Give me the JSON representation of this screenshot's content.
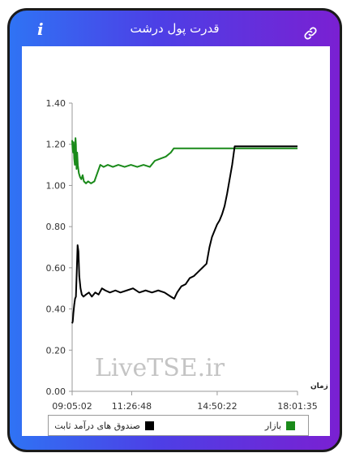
{
  "header": {
    "title": "قدرت پول درشت",
    "info_glyph": "i",
    "link_icon": "link-icon"
  },
  "colors": {
    "gradient_start": "#2f73f4",
    "gradient_end": "#7a20d2",
    "market": "#1a8a1a",
    "fixed_income": "#000000"
  },
  "watermark": "LiveTSE.ir",
  "chart_data": {
    "type": "line",
    "title": "",
    "xlabel": "زمان",
    "ylabel": "",
    "ylim": [
      0,
      1.4
    ],
    "y_ticks": [
      "0.00",
      "0.20",
      "0.40",
      "0.60",
      "0.80",
      "1.00",
      "1.20",
      "1.40"
    ],
    "x_ticks": [
      "09:05:02",
      "11:26:48",
      "14:50:22",
      "18:01:35"
    ],
    "xlim": [
      "09:05:02",
      "18:01:35"
    ],
    "grid": false,
    "legend_position": "bottom",
    "series": [
      {
        "name": "بازار",
        "color": "#1a8a1a",
        "points": [
          [
            "09:05:02",
            1.22
          ],
          [
            "09:06:00",
            1.18
          ],
          [
            "09:07:30",
            1.16
          ],
          [
            "09:08:30",
            1.21
          ],
          [
            "09:10:00",
            1.13
          ],
          [
            "09:11:30",
            1.1
          ],
          [
            "09:13:00",
            1.23
          ],
          [
            "09:14:00",
            1.2
          ],
          [
            "09:15:30",
            1.08
          ],
          [
            "09:17:00",
            1.16
          ],
          [
            "09:18:30",
            1.1
          ],
          [
            "09:21:00",
            1.06
          ],
          [
            "09:24:00",
            1.04
          ],
          [
            "09:27:00",
            1.03
          ],
          [
            "09:30:00",
            1.05
          ],
          [
            "09:33:00",
            1.02
          ],
          [
            "09:38:00",
            1.01
          ],
          [
            "09:43:00",
            1.02
          ],
          [
            "09:50:00",
            1.01
          ],
          [
            "09:58:00",
            1.02
          ],
          [
            "10:05:00",
            1.06
          ],
          [
            "10:12:00",
            1.1
          ],
          [
            "10:20:00",
            1.09
          ],
          [
            "10:30:00",
            1.1
          ],
          [
            "10:42:00",
            1.09
          ],
          [
            "10:55:00",
            1.1
          ],
          [
            "11:10:00",
            1.09
          ],
          [
            "11:25:00",
            1.1
          ],
          [
            "11:40:00",
            1.09
          ],
          [
            "11:55:00",
            1.1
          ],
          [
            "12:10:00",
            1.09
          ],
          [
            "12:22:00",
            1.12
          ],
          [
            "12:35:00",
            1.13
          ],
          [
            "12:48:00",
            1.14
          ],
          [
            "13:00:00",
            1.16
          ],
          [
            "13:07:00",
            1.18
          ],
          [
            "13:20:00",
            1.18
          ],
          [
            "14:00:00",
            1.18
          ],
          [
            "15:00:00",
            1.18
          ],
          [
            "16:00:00",
            1.18
          ],
          [
            "17:00:00",
            1.18
          ],
          [
            "18:01:35",
            1.18
          ]
        ]
      },
      {
        "name": "صندوق های درآمد ثابت",
        "color": "#000000",
        "points": [
          [
            "09:05:02",
            0.33
          ],
          [
            "09:06:30",
            0.34
          ],
          [
            "09:08:00",
            0.38
          ],
          [
            "09:10:00",
            0.42
          ],
          [
            "09:12:00",
            0.45
          ],
          [
            "09:14:00",
            0.46
          ],
          [
            "09:16:00",
            0.58
          ],
          [
            "09:18:00",
            0.71
          ],
          [
            "09:20:00",
            0.68
          ],
          [
            "09:22:00",
            0.56
          ],
          [
            "09:25:00",
            0.5
          ],
          [
            "09:28:00",
            0.47
          ],
          [
            "09:32:00",
            0.46
          ],
          [
            "09:38:00",
            0.47
          ],
          [
            "09:45:00",
            0.48
          ],
          [
            "09:52:00",
            0.46
          ],
          [
            "10:00:00",
            0.48
          ],
          [
            "10:08:00",
            0.47
          ],
          [
            "10:16:00",
            0.5
          ],
          [
            "10:24:00",
            0.49
          ],
          [
            "10:35:00",
            0.48
          ],
          [
            "10:48:00",
            0.49
          ],
          [
            "11:00:00",
            0.48
          ],
          [
            "11:15:00",
            0.49
          ],
          [
            "11:30:00",
            0.5
          ],
          [
            "11:45:00",
            0.48
          ],
          [
            "12:00:00",
            0.49
          ],
          [
            "12:15:00",
            0.48
          ],
          [
            "12:30:00",
            0.49
          ],
          [
            "12:45:00",
            0.48
          ],
          [
            "13:00:00",
            0.46
          ],
          [
            "13:08:00",
            0.45
          ],
          [
            "13:15:00",
            0.48
          ],
          [
            "13:25:00",
            0.51
          ],
          [
            "13:35:00",
            0.52
          ],
          [
            "13:45:00",
            0.55
          ],
          [
            "13:55:00",
            0.56
          ],
          [
            "14:05:00",
            0.58
          ],
          [
            "14:15:00",
            0.6
          ],
          [
            "14:25:00",
            0.62
          ],
          [
            "14:32:00",
            0.7
          ],
          [
            "14:38:00",
            0.75
          ],
          [
            "14:44:00",
            0.78
          ],
          [
            "14:50:00",
            0.81
          ],
          [
            "14:56:00",
            0.83
          ],
          [
            "15:02:00",
            0.86
          ],
          [
            "15:08:00",
            0.9
          ],
          [
            "15:14:00",
            0.96
          ],
          [
            "15:20:00",
            1.03
          ],
          [
            "15:26:00",
            1.1
          ],
          [
            "15:32:00",
            1.19
          ],
          [
            "16:00:00",
            1.19
          ],
          [
            "17:00:00",
            1.19
          ],
          [
            "18:01:35",
            1.19
          ]
        ]
      }
    ]
  },
  "legend": {
    "market_label": "بازار",
    "fixed_income_label": "صندوق های درآمد ثابت"
  }
}
